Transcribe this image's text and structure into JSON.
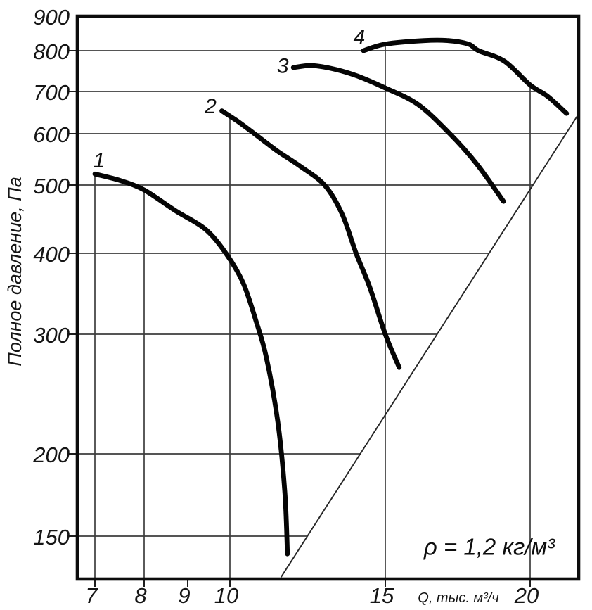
{
  "chart_data": {
    "type": "line",
    "title": "",
    "xlabel": "Q, тыс. м³/ч",
    "ylabel": "Полное давление, Па",
    "annotation": "ρ = 1,2 кг/м³",
    "x_scale": "log",
    "y_scale": "log",
    "xlim": [
      6.7,
      22
    ],
    "ylim": [
      130,
      900
    ],
    "grid": "partial",
    "legend": "curve numbers 1-4 placed at curve start points",
    "x_ticks": [
      {
        "label": "7",
        "value": 7,
        "grid": true
      },
      {
        "label": "8",
        "value": 8,
        "grid": true
      },
      {
        "label": "9",
        "value": 9,
        "grid": false
      },
      {
        "label": "10",
        "value": 10,
        "grid": true
      },
      {
        "label": "15",
        "value": 15,
        "grid": true
      },
      {
        "label": "20",
        "value": 20,
        "grid": true
      }
    ],
    "y_ticks": [
      {
        "label": "150",
        "value": 150,
        "grid": true
      },
      {
        "label": "200",
        "value": 200,
        "grid": true
      },
      {
        "label": "300",
        "value": 300,
        "grid": true
      },
      {
        "label": "400",
        "value": 400,
        "grid": true
      },
      {
        "label": "500",
        "value": 500,
        "grid": true
      },
      {
        "label": "600",
        "value": 600,
        "grid": true
      },
      {
        "label": "700",
        "value": 700,
        "grid": true
      },
      {
        "label": "800",
        "value": 800,
        "grid": true
      },
      {
        "label": "900",
        "value": 900,
        "grid": false
      }
    ],
    "series": [
      {
        "name": "1",
        "label": "1",
        "points": [
          [
            7,
            520
          ],
          [
            7.5,
            508
          ],
          [
            8,
            492
          ],
          [
            8.7,
            460
          ],
          [
            9.4,
            433
          ],
          [
            9.9,
            400
          ],
          [
            10.35,
            360
          ],
          [
            10.7,
            315
          ],
          [
            11.0,
            277
          ],
          [
            11.33,
            223
          ],
          [
            11.54,
            175
          ],
          [
            11.62,
            141
          ]
        ]
      },
      {
        "name": "2",
        "label": "2",
        "points": [
          [
            9.8,
            652
          ],
          [
            10.2,
            628
          ],
          [
            10.66,
            600
          ],
          [
            11.3,
            565
          ],
          [
            12.0,
            535
          ],
          [
            12.8,
            500
          ],
          [
            13.4,
            455
          ],
          [
            13.9,
            400
          ],
          [
            14.4,
            355
          ],
          [
            15.0,
            300
          ],
          [
            15.42,
            268
          ]
        ]
      },
      {
        "name": "3",
        "label": "3",
        "points": [
          [
            11.8,
            757
          ],
          [
            12.4,
            762
          ],
          [
            13.2,
            752
          ],
          [
            14.0,
            735
          ],
          [
            15.0,
            708
          ],
          [
            16.0,
            668
          ],
          [
            17.05,
            600
          ],
          [
            18.0,
            538
          ],
          [
            18.97,
            474
          ]
        ]
      },
      {
        "name": "4",
        "label": "4",
        "points": [
          [
            14.17,
            800
          ],
          [
            15.0,
            818
          ],
          [
            16.2,
            828
          ],
          [
            17.0,
            828
          ],
          [
            17.7,
            818
          ],
          [
            18.05,
            800
          ],
          [
            19.0,
            773
          ],
          [
            20.0,
            715
          ],
          [
            20.7,
            688
          ],
          [
            21.5,
            646
          ]
        ]
      }
    ],
    "system_resistance_line": {
      "name": "network-characteristic",
      "points": [
        [
          11.43,
          130
        ],
        [
          22,
          643
        ]
      ]
    }
  }
}
